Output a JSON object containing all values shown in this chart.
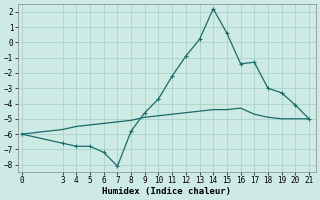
{
  "xlabel": "Humidex (Indice chaleur)",
  "ylabel": "",
  "background_color": "#ceeae4",
  "line_color": "#1a6b6b",
  "x_line1": [
    0,
    3,
    4,
    5,
    6,
    7,
    8,
    9,
    10,
    11,
    12,
    13,
    14,
    15,
    16,
    17,
    18,
    19,
    20,
    21
  ],
  "y_line1": [
    -6.0,
    -6.6,
    -6.8,
    -6.8,
    -7.2,
    -8.1,
    -5.8,
    -4.6,
    -3.7,
    -2.2,
    -0.9,
    0.2,
    2.2,
    0.6,
    -1.4,
    -1.3,
    -3.0,
    -3.3,
    -4.1,
    -5.0
  ],
  "x_line2": [
    0,
    3,
    4,
    5,
    6,
    7,
    8,
    9,
    10,
    11,
    12,
    13,
    14,
    15,
    16,
    17,
    18,
    19,
    20,
    21
  ],
  "y_line2": [
    -6.0,
    -5.7,
    -5.5,
    -5.4,
    -5.3,
    -5.2,
    -5.1,
    -4.9,
    -4.8,
    -4.7,
    -4.6,
    -4.5,
    -4.4,
    -4.4,
    -4.3,
    -4.7,
    -4.9,
    -5.0,
    -5.0,
    -5.0
  ],
  "ylim": [
    -8.5,
    2.5
  ],
  "xlim": [
    -0.3,
    21.5
  ],
  "yticks": [
    2,
    1,
    0,
    -1,
    -2,
    -3,
    -4,
    -5,
    -6,
    -7,
    -8
  ],
  "xticks": [
    0,
    3,
    4,
    5,
    6,
    7,
    8,
    9,
    10,
    11,
    12,
    13,
    14,
    15,
    16,
    17,
    18,
    19,
    20,
    21
  ],
  "grid_color": "#aad4cc",
  "marker": "+",
  "marker_size": 3.5,
  "line_width": 0.9,
  "axis_fontsize": 6,
  "tick_fontsize": 5.5,
  "xlabel_fontsize": 6.5
}
